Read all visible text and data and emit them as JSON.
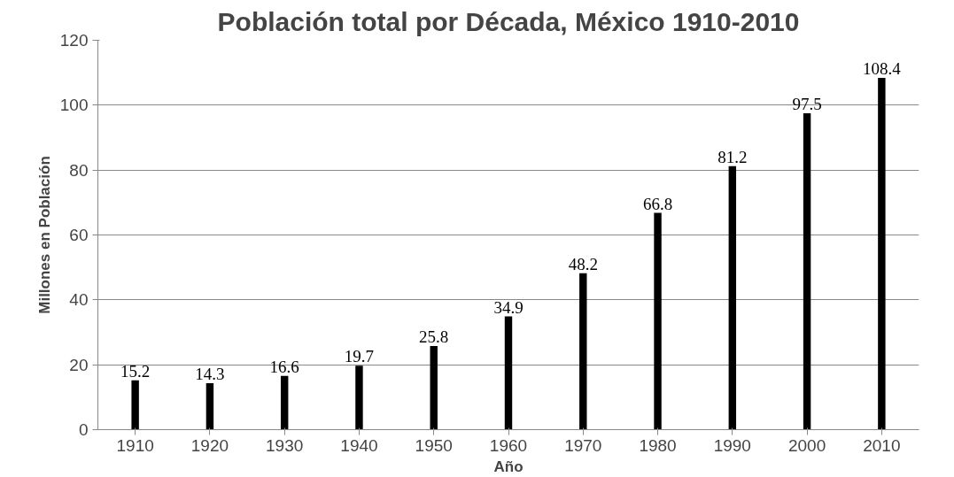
{
  "chart_data": {
    "type": "bar",
    "title": "Población total por Década, México 1910-2010",
    "xlabel": "Año",
    "ylabel": "Millones en Población",
    "categories": [
      "1910",
      "1920",
      "1930",
      "1940",
      "1950",
      "1960",
      "1970",
      "1980",
      "1990",
      "2000",
      "2010"
    ],
    "values": [
      15.2,
      14.3,
      16.6,
      19.7,
      25.8,
      34.9,
      48.2,
      66.8,
      81.2,
      97.5,
      108.4
    ],
    "color": "#000000",
    "ylim": [
      0,
      120
    ],
    "yticks": [
      0,
      20,
      40,
      60,
      80,
      100,
      120
    ],
    "grid": "y",
    "data_labels": true
  }
}
